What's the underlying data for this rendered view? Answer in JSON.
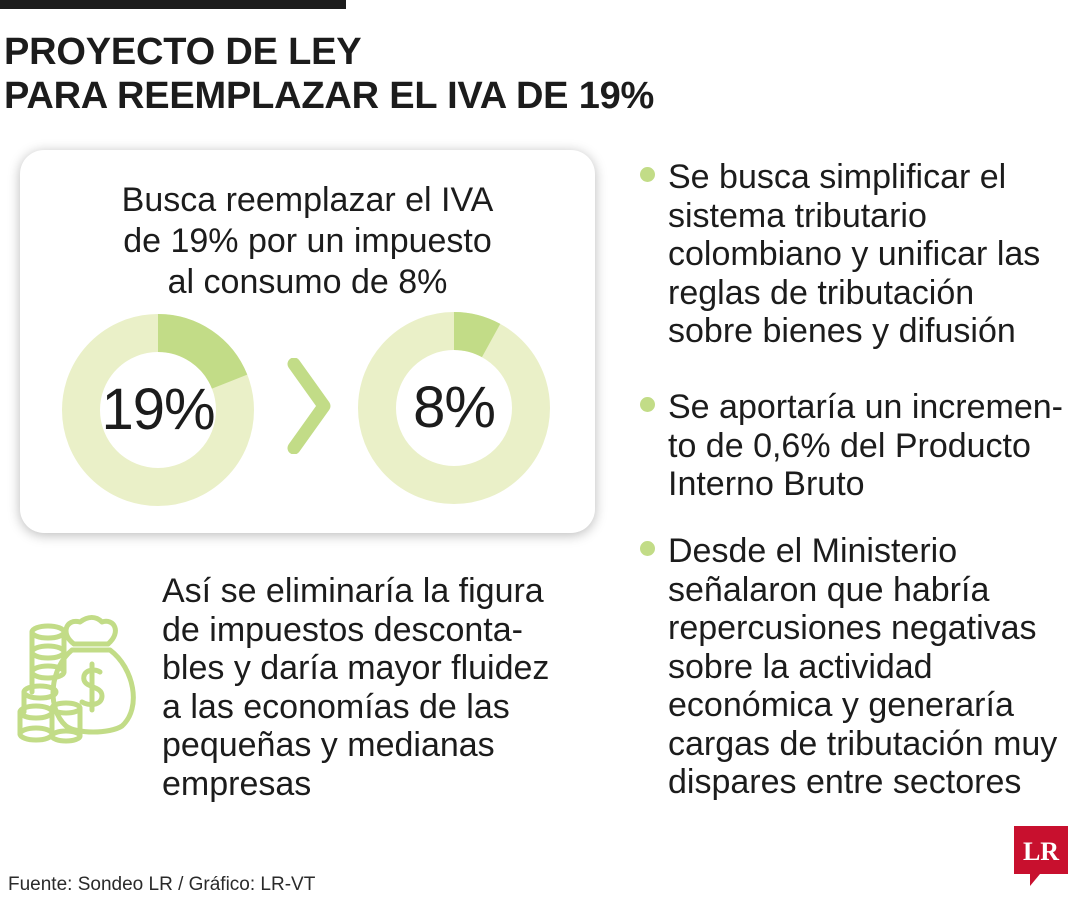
{
  "header": {
    "title_line1": "PROYECTO DE LEY",
    "title_line2": "PARA REEMPLAZAR EL IVA DE 19%"
  },
  "card": {
    "line1": "Busca reemplazar el IVA",
    "line2": "de 19% por un impuesto",
    "line3": "al consumo de 8%",
    "donut_before": {
      "label": "19%",
      "value": 19
    },
    "donut_after": {
      "label": "8%",
      "value": 8
    }
  },
  "left_paragraph": {
    "lines": [
      "Así se eliminaría la figura",
      "de impuestos desconta-",
      "bles y daría mayor fluidez",
      "a las economías de las",
      "pequeñas y medianas",
      "empresas"
    ]
  },
  "bullets": [
    {
      "lines": [
        "Se busca simplificar el",
        "sistema tributario",
        "colombiano y unificar las",
        "reglas de tributación",
        "sobre bienes y difusión"
      ]
    },
    {
      "lines": [
        "Se aportaría un incremen-",
        "to de 0,6% del Producto",
        "Interno Bruto"
      ]
    },
    {
      "lines": [
        "Desde el Ministerio",
        "señalaron que habría",
        "repercusiones negativas",
        "sobre la actividad",
        "económica y generaría",
        "cargas de tributación muy",
        "dispares entre sectores"
      ]
    }
  ],
  "footer": {
    "source": "Fuente: Sondeo LR / Gráfico: LR-VT",
    "logo_text": "LR"
  },
  "colors": {
    "ring_light": "#eaf0c8",
    "ring_accent": "#c2dc87",
    "logo_red": "#c8102e",
    "text": "#1c1c1c"
  },
  "icons": [
    "money-bag-icon",
    "coin-stack-icon",
    "chevron-right-icon",
    "lr-logo-icon"
  ]
}
